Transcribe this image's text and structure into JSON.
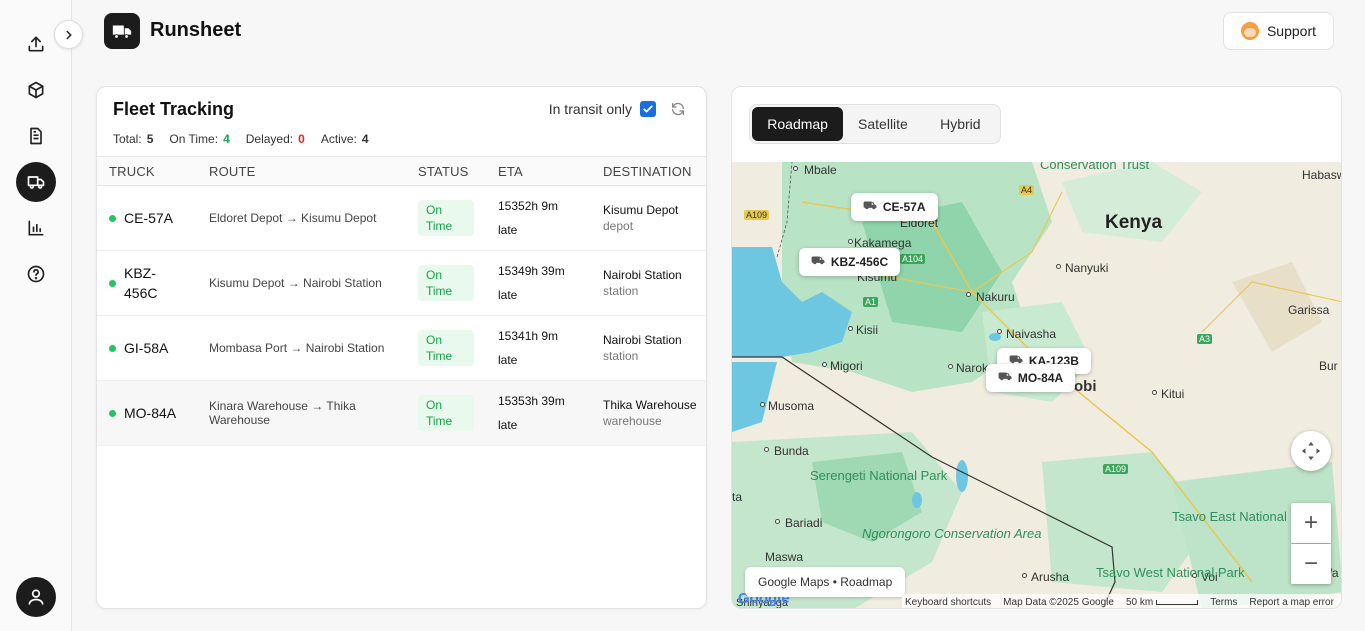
{
  "header": {
    "app_title": "Runsheet",
    "support_label": "Support"
  },
  "sidebar": {
    "items": [
      {
        "icon": "upload-icon"
      },
      {
        "icon": "package-icon"
      },
      {
        "icon": "document-icon"
      },
      {
        "icon": "truck-icon",
        "active": true
      },
      {
        "icon": "bar-chart-icon"
      },
      {
        "icon": "help-icon"
      }
    ]
  },
  "fleet": {
    "title": "Fleet Tracking",
    "transit_label": "In transit only",
    "transit_checked": true,
    "stats": {
      "total_label": "Total:",
      "total": "5",
      "ontime_label": "On Time:",
      "ontime": "4",
      "delayed_label": "Delayed:",
      "delayed": "0",
      "active_label": "Active:",
      "active": "4"
    },
    "columns": [
      "TRUCK",
      "ROUTE",
      "STATUS",
      "ETA",
      "DESTINATION"
    ],
    "rows": [
      {
        "truck": "CE-57A",
        "route": "Eldoret Depot → Kisumu Depot",
        "status": "On Time",
        "eta_time": "15352h 9m",
        "eta_note": "late",
        "dest": "Kisumu Depot",
        "dest_type": "depot"
      },
      {
        "truck": "KBZ-456C",
        "route": "Kisumu Depot → Nairobi Station",
        "status": "On Time",
        "eta_time": "15349h 39m",
        "eta_note": "late",
        "dest": "Nairobi Station",
        "dest_type": "station"
      },
      {
        "truck": "GI-58A",
        "route": "Mombasa Port → Nairobi Station",
        "status": "On Time",
        "eta_time": "15341h 9m",
        "eta_note": "late",
        "dest": "Nairobi Station",
        "dest_type": "station"
      },
      {
        "truck": "MO-84A",
        "route": "Kinara Warehouse → Thika Warehouse",
        "status": "On Time",
        "eta_time": "15353h 39m",
        "eta_note": "late",
        "dest": "Thika Warehouse",
        "dest_type": "warehouse"
      }
    ]
  },
  "map": {
    "tabs": [
      "Roadmap",
      "Satellite",
      "Hybrid"
    ],
    "active_tab": "Roadmap",
    "markers": [
      "CE-57A",
      "KBZ-456C",
      "KA-123B",
      "MO-84A"
    ],
    "places": {
      "kenya": "Kenya",
      "mbale": "Mbale",
      "eldoret": "Eldoret",
      "kakamega": "Kakamega",
      "kisumu": "Kisumu",
      "kisii": "Kisii",
      "migori": "Migori",
      "nakuru": "Nakuru",
      "naivasha": "Naivasha",
      "nanyuki": "Nanyuki",
      "narok": "Narok",
      "nairobi": "obi",
      "kitui": "Kitui",
      "garissa": "Garissa",
      "habaswein": "Habaswei",
      "musoma": "Musoma",
      "bunda": "Bunda",
      "bariadi": "Bariadi",
      "maswa": "Maswa",
      "arusha": "Arusha",
      "voi": "Voi",
      "shinyanga": "Shinyanga",
      "wa": "Wa",
      "bur": "Bur",
      "ta": "ta"
    },
    "parks": {
      "conservation_trust": "Conservation Trust",
      "serengeti": "Serengeti National Park",
      "ngorongoro": "Ngorongoro Conservation Area",
      "tsavo_east": "Tsavo East National Park",
      "tsavo_west": "Tsavo West National Park"
    },
    "roads": [
      "A109",
      "A4",
      "A104",
      "A1",
      "A3",
      "A109"
    ],
    "view_label": "Google Maps • Roadmap",
    "google": "Google",
    "footer": {
      "shortcuts": "Keyboard shortcuts",
      "data": "Map Data ©2025 Google",
      "scale": "50 km",
      "terms": "Terms",
      "report": "Report a map error"
    }
  }
}
